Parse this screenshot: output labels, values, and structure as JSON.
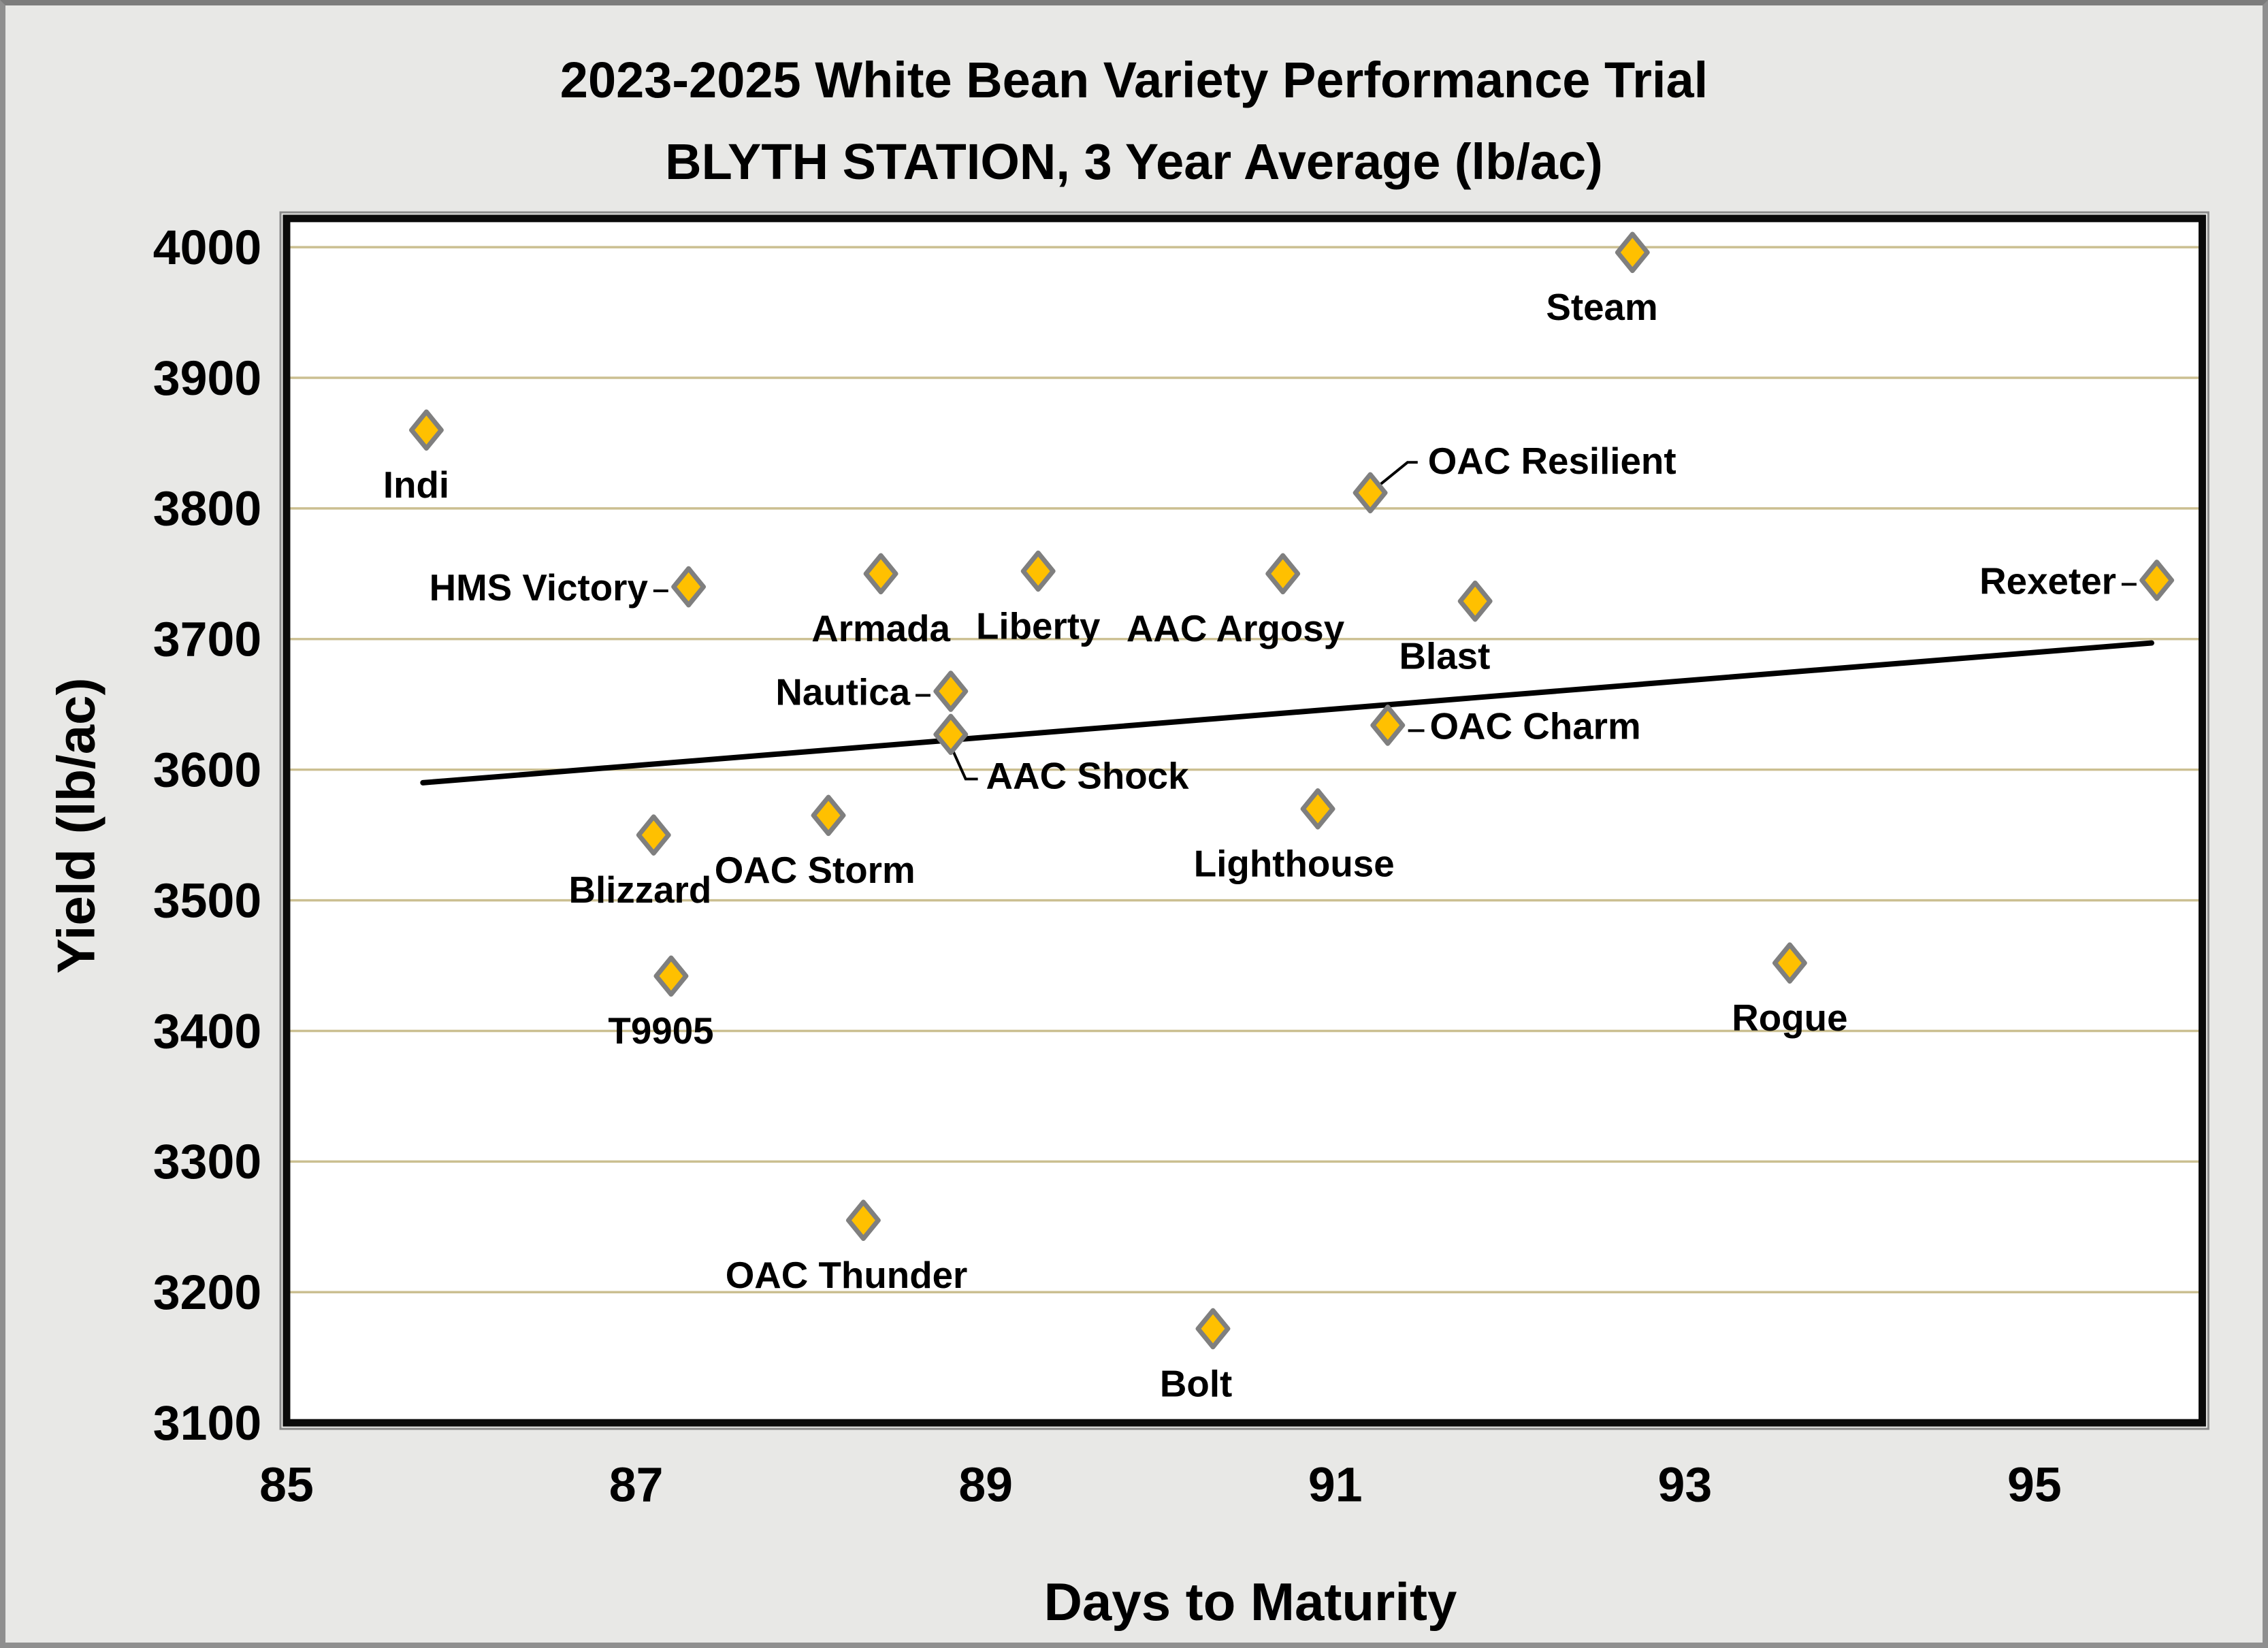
{
  "title": {
    "line1": "2023-2025 White Bean Variety Performance Trial",
    "line2": "BLYTH STATION, 3 Year Average (lb/ac)"
  },
  "chart_data": {
    "type": "scatter",
    "title": "2023-2025 White Bean Variety Performance Trial — BLYTH STATION, 3 Year Average (lb/ac)",
    "xlabel": "Days to Maturity",
    "ylabel": "Yield (lb/ac)",
    "xlim": [
      85,
      95.96
    ],
    "ylim": [
      3100,
      4022
    ],
    "x_ticks": [
      85,
      87,
      89,
      91,
      93,
      95
    ],
    "y_ticks": [
      3100,
      3200,
      3300,
      3400,
      3500,
      3600,
      3700,
      3800,
      3900,
      4000
    ],
    "grid": "horizontal",
    "legend": "none",
    "gridline_color": "#CBBF91",
    "marker": {
      "shape": "diamond",
      "fill": "#FFC000",
      "stroke": "#7F7F7F"
    },
    "trendline": {
      "x1": 85.78,
      "y1": 3590,
      "x2": 95.67,
      "y2": 3697,
      "color": "#000000"
    },
    "points": [
      {
        "name": "Indi",
        "x": 85.8,
        "y": 3860,
        "label_side": "below",
        "label_dx": -15
      },
      {
        "name": "Blizzard",
        "x": 87.1,
        "y": 3550,
        "label_side": "below",
        "label_dx": -20
      },
      {
        "name": "T9905",
        "x": 87.2,
        "y": 3442,
        "label_side": "below",
        "label_dx": -15
      },
      {
        "name": "HMS Victory",
        "x": 87.3,
        "y": 3740,
        "label_side": "left"
      },
      {
        "name": "OAC Storm",
        "x": 88.1,
        "y": 3565,
        "label_side": "below",
        "label_dx": -20
      },
      {
        "name": "OAC Thunder",
        "x": 88.3,
        "y": 3255,
        "label_side": "below",
        "label_dx": -25
      },
      {
        "name": "Armada",
        "x": 88.4,
        "y": 3750,
        "label_side": "below"
      },
      {
        "name": "AAC Shock",
        "x": 88.8,
        "y": 3627,
        "label_side": "below-right"
      },
      {
        "name": "Nautica",
        "x": 88.8,
        "y": 3660,
        "label_side": "left"
      },
      {
        "name": "Liberty",
        "x": 89.3,
        "y": 3752,
        "label_side": "below"
      },
      {
        "name": "Bolt",
        "x": 90.3,
        "y": 3172,
        "label_side": "below",
        "label_dx": -25
      },
      {
        "name": "AAC Argosy",
        "x": 90.7,
        "y": 3750,
        "label_side": "below",
        "label_dx": -70
      },
      {
        "name": "Lighthouse",
        "x": 90.9,
        "y": 3570,
        "label_side": "below",
        "label_dx": -35
      },
      {
        "name": "OAC Resilient",
        "x": 91.2,
        "y": 3812,
        "label_side": "above-right"
      },
      {
        "name": "OAC Charm",
        "x": 91.3,
        "y": 3634,
        "label_side": "right"
      },
      {
        "name": "Blast",
        "x": 91.8,
        "y": 3729,
        "label_side": "below",
        "label_dx": -45
      },
      {
        "name": "Steam",
        "x": 92.7,
        "y": 3996,
        "label_side": "below",
        "label_dx": -45
      },
      {
        "name": "Rogue",
        "x": 93.6,
        "y": 3452,
        "label_side": "below"
      },
      {
        "name": "Rexeter",
        "x": 95.7,
        "y": 3745,
        "label_side": "left"
      }
    ]
  }
}
